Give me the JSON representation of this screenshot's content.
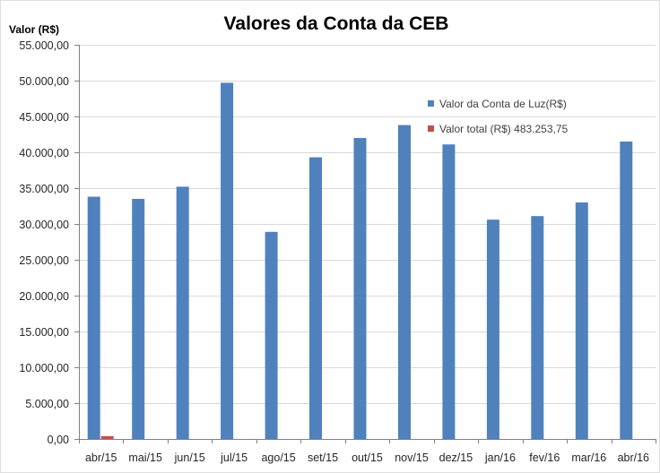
{
  "chart_data": {
    "type": "bar",
    "title": "Valores da Conta da CEB",
    "ylabel": "Valor (R$)",
    "categories": [
      "abr/15",
      "mai/15",
      "jun/15",
      "jul/15",
      "ago/15",
      "set/15",
      "out/15",
      "nov/15",
      "dez/15",
      "jan/16",
      "fev/16",
      "mar/16",
      "abr/16"
    ],
    "series": [
      {
        "name": "Valor da Conta de Luz(R$)",
        "color": "#4f81bd",
        "values": [
          33800,
          33500,
          35200,
          49700,
          28900,
          39300,
          42000,
          43800,
          41100,
          30600,
          31100,
          33000,
          41500
        ]
      },
      {
        "name": "Valor total (R$) 483.253,75",
        "color": "#c0504d",
        "values": [
          400,
          null,
          null,
          null,
          null,
          null,
          null,
          null,
          null,
          null,
          null,
          null,
          null
        ]
      }
    ],
    "ylim": [
      0,
      55000
    ],
    "yticks": [
      0,
      5000,
      10000,
      15000,
      20000,
      25000,
      30000,
      35000,
      40000,
      45000,
      50000,
      55000
    ],
    "ytick_labels": [
      "0,00",
      "5.000,00",
      "10.000,00",
      "15.000,00",
      "20.000,00",
      "25.000,00",
      "30.000,00",
      "35.000,00",
      "40.000,00",
      "45.000,00",
      "50.000,00",
      "55.000,00"
    ],
    "grid": true,
    "legend": "inside-top-right"
  }
}
